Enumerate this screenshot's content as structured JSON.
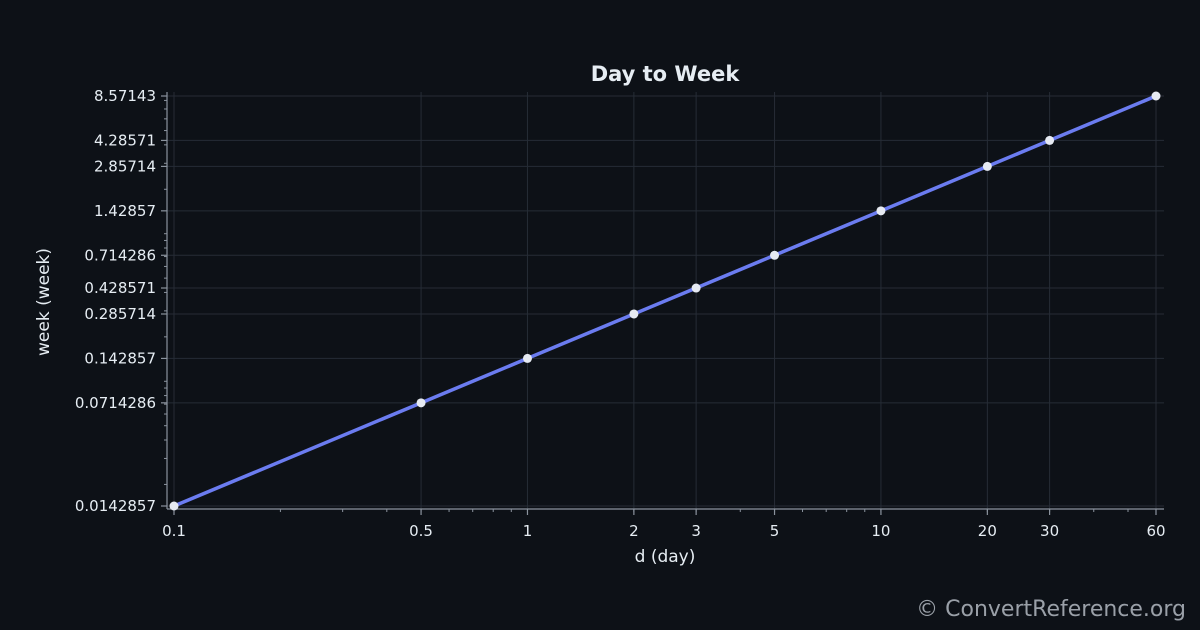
{
  "chart_data": {
    "type": "line",
    "title": "Day to Week",
    "xlabel": "d (day)",
    "ylabel": "week (week)",
    "x_scale": "log",
    "y_scale": "log",
    "xlim": [
      0.1,
      60
    ],
    "ylim": [
      0.0142857,
      8.57143
    ],
    "x_ticks": [
      0.1,
      0.5,
      1,
      2,
      3,
      5,
      10,
      20,
      30,
      60
    ],
    "x_tick_labels": [
      "0.1",
      "0.5",
      "1",
      "2",
      "3",
      "5",
      "10",
      "20",
      "30",
      "60"
    ],
    "y_ticks": [
      0.0142857,
      0.0714286,
      0.142857,
      0.285714,
      0.428571,
      0.714286,
      1.42857,
      2.85714,
      4.28571,
      8.57143
    ],
    "y_tick_labels": [
      "0.0142857",
      "0.0714286",
      "0.142857",
      "0.285714",
      "0.428571",
      "0.714286",
      "1.42857",
      "2.85714",
      "4.28571",
      "8.57143"
    ],
    "grid": true,
    "series": [
      {
        "x": [
          0.1,
          0.5,
          1,
          2,
          3,
          5,
          10,
          20,
          30,
          60
        ],
        "y": [
          0.0142857,
          0.0714286,
          0.142857,
          0.285714,
          0.428571,
          0.714286,
          1.42857,
          2.85714,
          4.28571,
          8.57143
        ]
      }
    ],
    "colors": {
      "background": "#0d1117",
      "line": "#6b7cf0",
      "marker": "#e6eaf2",
      "grid": "#262c36",
      "axis": "#8b939e",
      "text": "#e6edf3"
    }
  },
  "watermark": "© ConvertReference.org"
}
